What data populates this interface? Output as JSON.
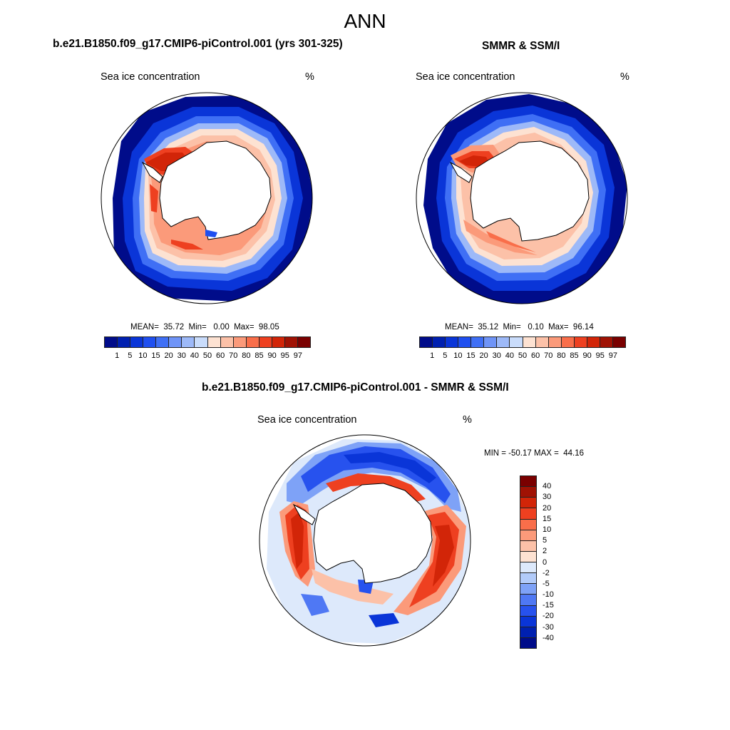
{
  "main_title": "ANN",
  "panels": [
    {
      "title": "b.e21.B1850.f09_g17.CMIP6-piControl.001 (yrs 301-325)",
      "variable": "Sea ice concentration",
      "units": "%",
      "stats": "MEAN=  35.72  Min=   0.00  Max=  98.05"
    },
    {
      "title": "SMMR & SSM/I",
      "variable": "Sea ice concentration",
      "units": "%",
      "stats": "MEAN=  35.12  Min=   0.10  Max=  96.14"
    }
  ],
  "diff_panel": {
    "title": "b.e21.B1850.f09_g17.CMIP6-piControl.001 - SMMR & SSM/I",
    "variable": "Sea ice concentration",
    "units": "%",
    "minmax": "MIN = -50.17 MAX =  44.16"
  },
  "colorbar_conc": {
    "labels": [
      "1",
      "5",
      "10",
      "15",
      "20",
      "30",
      "40",
      "50",
      "60",
      "70",
      "80",
      "85",
      "90",
      "95",
      "97"
    ],
    "colors": [
      "#000c8a",
      "#0020b0",
      "#0a35d8",
      "#1f4ff0",
      "#3f6ff5",
      "#6f94f7",
      "#9db9f8",
      "#c9dcfb",
      "#fde2d2",
      "#fcc1a8",
      "#fb9a7a",
      "#f96e4a",
      "#ee4020",
      "#d22508",
      "#a01204",
      "#7a0000"
    ]
  },
  "colorbar_diff": {
    "labels": [
      "40",
      "30",
      "20",
      "15",
      "10",
      "5",
      "2",
      "0",
      "-2",
      "-5",
      "-10",
      "-15",
      "-20",
      "-30",
      "-40"
    ],
    "colors": [
      "#7a0000",
      "#a01204",
      "#d22508",
      "#ee4020",
      "#f96e4a",
      "#fb9a7a",
      "#fcc1a8",
      "#fde2d2",
      "#dde9fb",
      "#b2cbf9",
      "#7ea2f7",
      "#4f78f4",
      "#2752ee",
      "#0a35d8",
      "#0020b0",
      "#000c8a"
    ]
  }
}
